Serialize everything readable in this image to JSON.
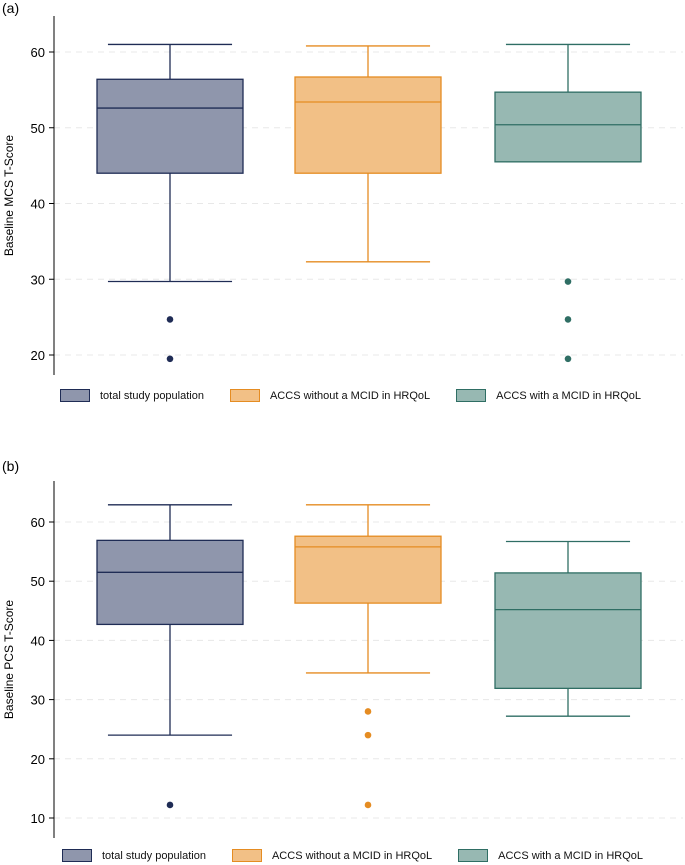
{
  "colors": {
    "total": {
      "fill": "#8f96ac",
      "stroke": "#1f2c55"
    },
    "without": {
      "fill": "#f2c086",
      "stroke": "#e58c22"
    },
    "with": {
      "fill": "#97b8b2",
      "stroke": "#2f6e64"
    }
  },
  "chart_data": [
    {
      "type": "box",
      "panel_label": "(a)",
      "ylabel": "Baseline MCS T-Score",
      "ylim": [
        17,
        63
      ],
      "yticks": [
        20,
        30,
        40,
        50,
        60
      ],
      "ytick_labels": [
        "20",
        "30",
        "40",
        "50",
        "60"
      ],
      "grid": true,
      "series": [
        {
          "name": "total study population",
          "key": "total",
          "whisker_low": 29.7,
          "q1": 44.0,
          "median": 52.6,
          "q3": 56.4,
          "whisker_high": 61.0,
          "outliers": [
            24.7,
            19.5
          ]
        },
        {
          "name": "ACCS without a MCID in HRQoL",
          "key": "without",
          "whisker_low": 32.3,
          "q1": 44.0,
          "median": 53.4,
          "q3": 56.7,
          "whisker_high": 60.8,
          "outliers": []
        },
        {
          "name": "ACCS with a MCID in HRQoL",
          "key": "with",
          "whisker_low": 45.5,
          "q1": 45.5,
          "median": 50.4,
          "q3": 54.7,
          "whisker_high": 61.0,
          "outliers": [
            29.7,
            24.7,
            19.5
          ]
        }
      ],
      "legend": [
        "total study population",
        "ACCS without a MCID in HRQoL",
        "ACCS with a MCID in HRQoL"
      ]
    },
    {
      "type": "box",
      "panel_label": "(b)",
      "ylabel": "Baseline PCS T-Score",
      "ylim": [
        8,
        65
      ],
      "yticks": [
        10,
        20,
        30,
        40,
        50,
        60
      ],
      "ytick_labels": [
        "10",
        "20",
        "30",
        "40",
        "50",
        "60"
      ],
      "grid": true,
      "series": [
        {
          "name": "total study population",
          "key": "total",
          "whisker_low": 24.0,
          "q1": 42.7,
          "median": 51.5,
          "q3": 56.9,
          "whisker_high": 62.9,
          "outliers": [
            12.2
          ]
        },
        {
          "name": "ACCS without a MCID in HRQoL",
          "key": "without",
          "whisker_low": 34.5,
          "q1": 46.3,
          "median": 55.8,
          "q3": 57.6,
          "whisker_high": 62.9,
          "outliers": [
            28.0,
            24.0,
            12.2
          ]
        },
        {
          "name": "ACCS with a MCID in HRQoL",
          "key": "with",
          "whisker_low": 27.2,
          "q1": 31.9,
          "median": 45.2,
          "q3": 51.4,
          "whisker_high": 56.7,
          "outliers": []
        }
      ],
      "legend": [
        "total study population",
        "ACCS without a MCID in HRQoL",
        "ACCS with a MCID in HRQoL"
      ]
    }
  ]
}
